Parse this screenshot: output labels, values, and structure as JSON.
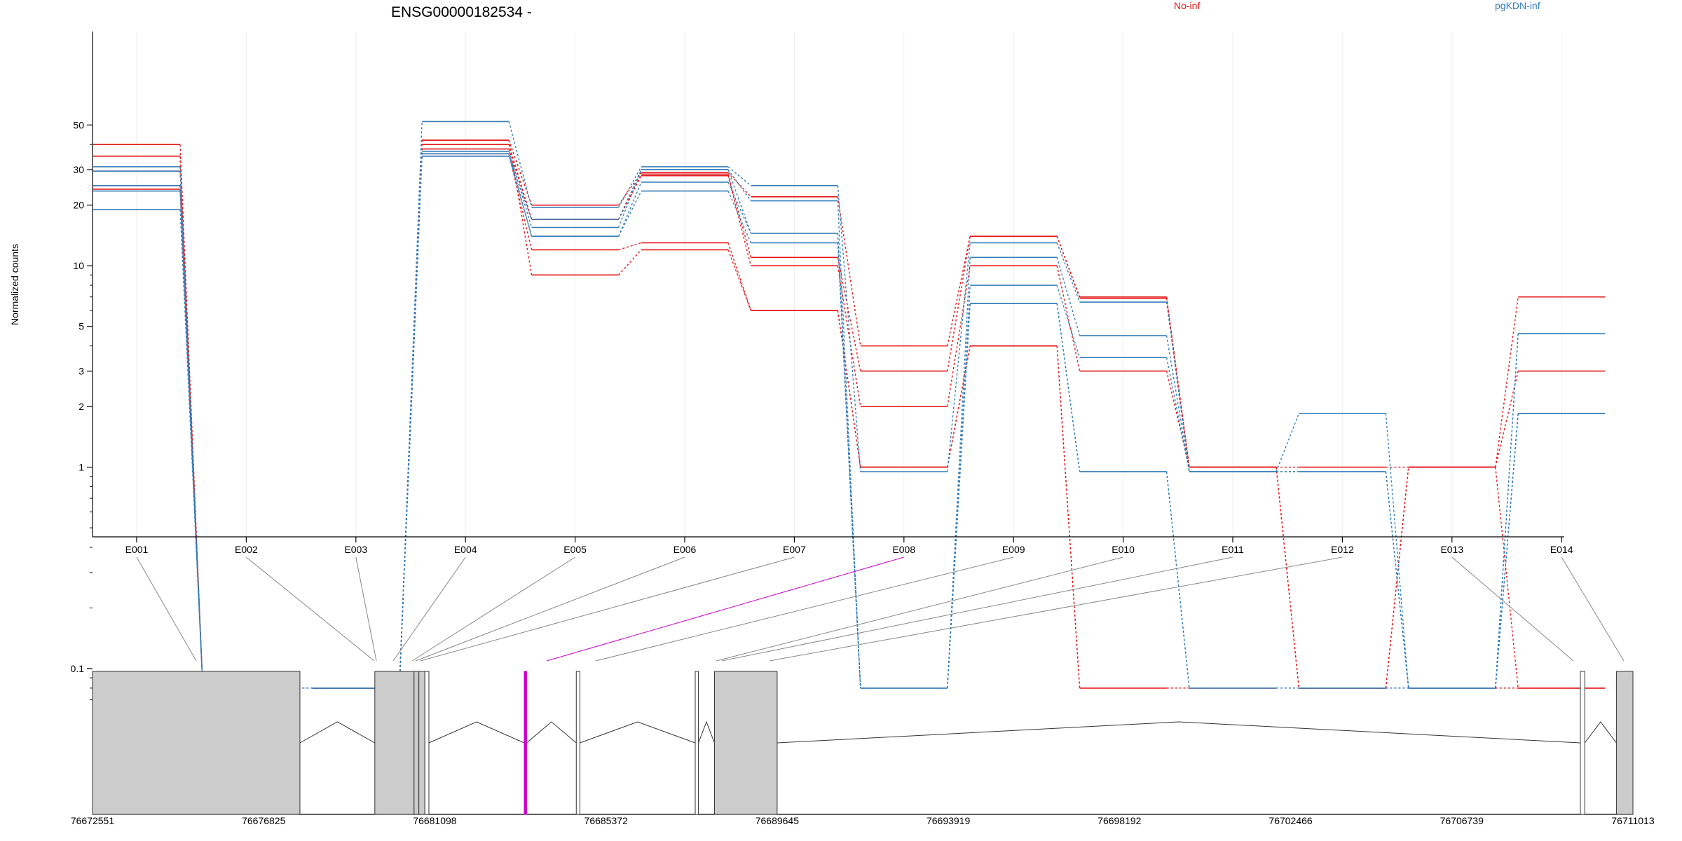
{
  "chart_data": {
    "type": "line",
    "title": "ENSG00000182534 -",
    "ylabel": "Normalized counts",
    "xlabel": "",
    "y_scale": "log",
    "ylim": [
      0.07,
      60
    ],
    "y_ticks": [
      0.1,
      1,
      2,
      3,
      5,
      10,
      20,
      30,
      50
    ],
    "y_tick_labels": [
      "0.1",
      "1",
      "2",
      "3",
      "5",
      "10",
      "20",
      "30",
      "50"
    ],
    "grid": true,
    "legend": [
      {
        "name": "No-inf",
        "color": "#e41a1c"
      },
      {
        "name": "pgKDN-inf",
        "color": "#377eb8"
      }
    ],
    "categories": [
      "E001",
      "E002",
      "E003",
      "E004",
      "E005",
      "E006",
      "E007",
      "E008",
      "E009",
      "E010",
      "E011",
      "E012",
      "E013",
      "E014"
    ],
    "series": [
      {
        "group": "No-inf",
        "color": "#e41a1c",
        "values": [
          40,
          0.08,
          0.08,
          42,
          20,
          29,
          22,
          4,
          14,
          7,
          1,
          1,
          1,
          7
        ]
      },
      {
        "group": "No-inf",
        "color": "#e41a1c",
        "values": [
          35,
          0.08,
          0.08,
          40,
          17,
          28.5,
          11,
          3,
          14,
          6.9,
          1,
          0.08,
          1,
          3
        ]
      },
      {
        "group": "No-inf",
        "color": "#e41a1c",
        "values": [
          29.5,
          0.08,
          0.08,
          38,
          17,
          28,
          10,
          2,
          10,
          3,
          1,
          0.08,
          1,
          0.08
        ]
      },
      {
        "group": "No-inf",
        "color": "#e41a1c",
        "values": [
          25,
          0.08,
          0.08,
          36,
          12,
          13,
          6,
          1,
          4,
          0.08,
          0.08,
          0.08,
          0.08,
          0.08
        ]
      },
      {
        "group": "No-inf",
        "color": "#e41a1c",
        "values": [
          24,
          0.08,
          0.08,
          42,
          9,
          12,
          6,
          1,
          4,
          0.08,
          0.08,
          0.08,
          0.08,
          0.08
        ]
      },
      {
        "group": "pgKDN-inf",
        "color": "#377eb8",
        "values": [
          31,
          0.08,
          0.08,
          52,
          19.5,
          31,
          25,
          0.95,
          13,
          6.6,
          0.95,
          1.85,
          0.08,
          4.6
        ]
      },
      {
        "group": "pgKDN-inf",
        "color": "#377eb8",
        "values": [
          29.5,
          0.08,
          0.08,
          37,
          15.5,
          30,
          21,
          0.08,
          11,
          4.5,
          0.95,
          0.95,
          0.08,
          4.6
        ]
      },
      {
        "group": "pgKDN-inf",
        "color": "#377eb8",
        "values": [
          25,
          0.08,
          0.08,
          36,
          14,
          26,
          14.5,
          0.08,
          8,
          3.5,
          0.95,
          0.95,
          0.08,
          1.85
        ]
      },
      {
        "group": "pgKDN-inf",
        "color": "#377eb8",
        "values": [
          23.5,
          0.08,
          0.08,
          35,
          14,
          23.5,
          13,
          0.08,
          6.5,
          0.95,
          0.08,
          0.08,
          0.08,
          1.85
        ]
      },
      {
        "group": "pgKDN-inf",
        "color": "#377eb8",
        "values": [
          19,
          0.08,
          0.08,
          35,
          17,
          30,
          14.5,
          0.08,
          6.5,
          0.95,
          0.08,
          0.08,
          0.08,
          1.85
        ]
      }
    ],
    "gene_model": {
      "genomic_ticks": [
        "76672551",
        "76676825",
        "76681098",
        "76685372",
        "76689645",
        "76693919",
        "76698192",
        "76702466",
        "76706739",
        "76711013"
      ],
      "genomic_tick_values": [
        76672551,
        76676825,
        76681098,
        76685372,
        76689645,
        76693919,
        76698192,
        76702466,
        76706739,
        76711013
      ],
      "exons": [
        {
          "start": 76672551,
          "end": 76677730,
          "filled": true
        },
        {
          "start": 76679600,
          "end": 76680580,
          "filled": true
        },
        {
          "start": 76680580,
          "end": 76680700,
          "filled": true
        },
        {
          "start": 76680700,
          "end": 76680850,
          "filled": true
        },
        {
          "start": 76680850,
          "end": 76680950,
          "filled": false
        },
        {
          "start": 76683330,
          "end": 76683390,
          "filled": true,
          "highlight": true
        },
        {
          "start": 76684630,
          "end": 76684720,
          "filled": false
        },
        {
          "start": 76687600,
          "end": 76687680,
          "filled": false
        },
        {
          "start": 76688080,
          "end": 76689645,
          "filled": true
        },
        {
          "start": 76709700,
          "end": 76709810,
          "filled": false
        },
        {
          "start": 76710600,
          "end": 76711013,
          "filled": true
        }
      ],
      "highlight_color": "#cc00cc"
    }
  }
}
